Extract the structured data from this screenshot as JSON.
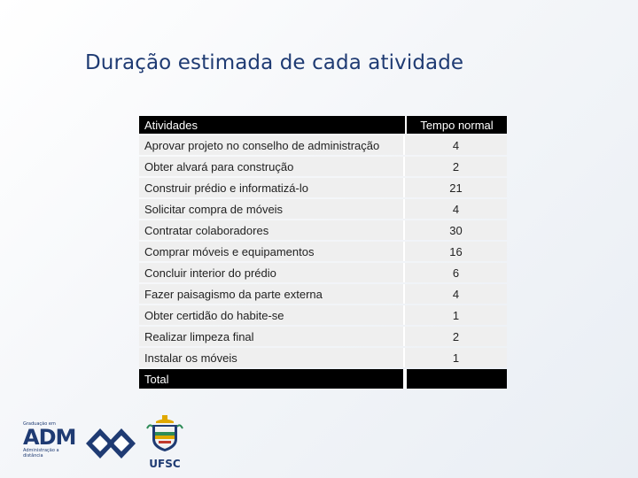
{
  "title": "Duração estimada de cada atividade",
  "table": {
    "headers": [
      "Atividades",
      "Tempo normal"
    ],
    "rows": [
      {
        "activity": "Aprovar projeto no conselho de administração",
        "time": "4"
      },
      {
        "activity": "Obter alvará para construção",
        "time": "2"
      },
      {
        "activity": "Construir prédio e informatizá-lo",
        "time": "21"
      },
      {
        "activity": "Solicitar compra de móveis",
        "time": "4"
      },
      {
        "activity": "Contratar colaboradores",
        "time": "30"
      },
      {
        "activity": "Comprar móveis e equipamentos",
        "time": "16"
      },
      {
        "activity": "Concluir interior do prédio",
        "time": "6"
      },
      {
        "activity": "Fazer paisagismo da parte externa",
        "time": "4"
      },
      {
        "activity": "Obter certidão do habite-se",
        "time": "1"
      },
      {
        "activity": "Realizar limpeza final",
        "time": "2"
      },
      {
        "activity": "Instalar os móveis",
        "time": "1"
      }
    ],
    "total_label": "Total",
    "total_value": ""
  },
  "footer": {
    "adm_logo_top": "Graduação em",
    "adm_logo_main": "ADM",
    "adm_logo_bottom": "Administração a distância",
    "ufsc_label": "UFSC",
    "brand_color": "#1f3b73"
  }
}
